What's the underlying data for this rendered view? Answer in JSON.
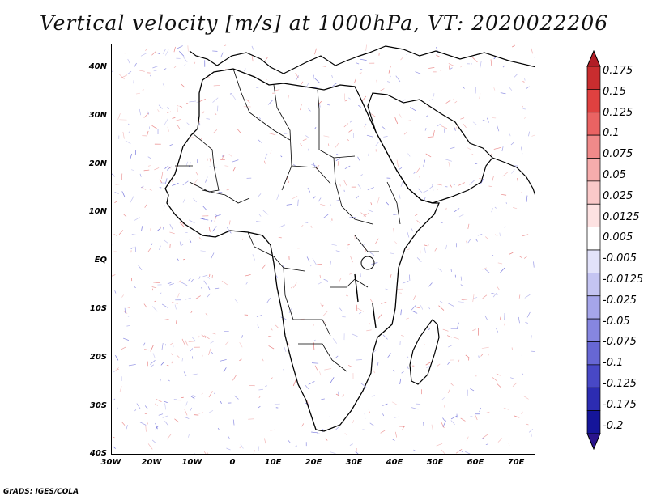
{
  "title": "Vertical velocity [m/s] at 1000hPa, VT: 2020022206",
  "footer": "GrADS: IGES/COLA",
  "lat_labels": [
    "40N",
    "30N",
    "20N",
    "10N",
    "EQ",
    "10S",
    "20S",
    "30S",
    "40S"
  ],
  "lon_labels": [
    "30W",
    "20W",
    "10W",
    "0",
    "10E",
    "20E",
    "30E",
    "40E",
    "50E",
    "60E",
    "70E"
  ],
  "colorbar": {
    "labels": [
      "0.175",
      "0.15",
      "0.125",
      "0.1",
      "0.075",
      "0.05",
      "0.025",
      "0.0125",
      "0.005",
      "-0.005",
      "-0.0125",
      "-0.025",
      "-0.05",
      "-0.075",
      "-0.1",
      "-0.125",
      "-0.175",
      "-0.2"
    ],
    "colors": [
      "#b11d25",
      "#c92d2f",
      "#df4140",
      "#ea6363",
      "#f08a8a",
      "#f6acac",
      "#fac9c9",
      "#fde2e2",
      "#ffffff",
      "#e2e2fa",
      "#c4c4f2",
      "#a5a5ea",
      "#8686e0",
      "#6767d4",
      "#4848c6",
      "#2c2cb2",
      "#15159a",
      "#2a148c"
    ]
  },
  "colors": {
    "positive": "#e05050",
    "negative": "#4848d0",
    "coastline": "#000000"
  }
}
